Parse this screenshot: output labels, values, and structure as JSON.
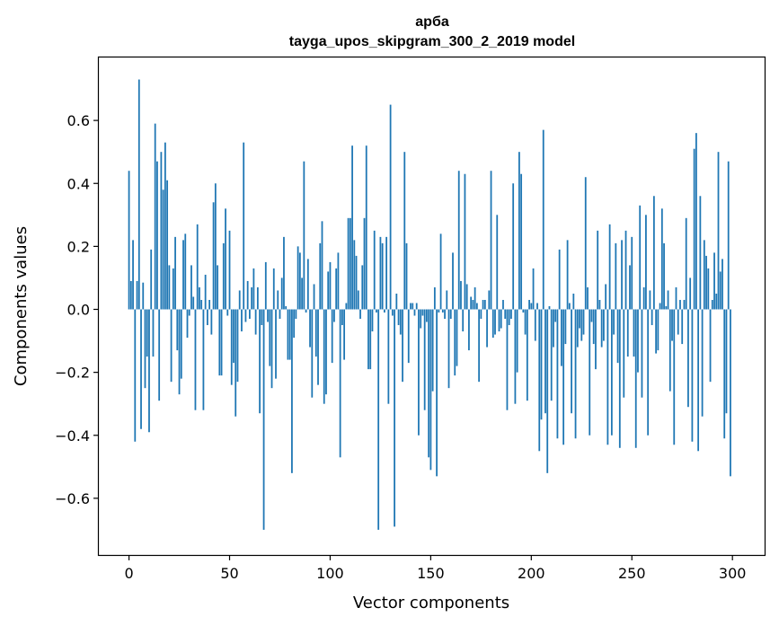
{
  "chart_data": {
    "type": "bar",
    "title": "арба",
    "subtitle": "tayga_upos_skipgram_300_2_2019 model",
    "xlabel": "Vector components",
    "ylabel": "Components values",
    "xlim": [
      -15,
      316
    ],
    "ylim": [
      -0.78,
      0.8
    ],
    "xticks": [
      0,
      50,
      100,
      150,
      200,
      250,
      300
    ],
    "xtick_labels": [
      "0",
      "50",
      "100",
      "150",
      "200",
      "250",
      "300"
    ],
    "yticks": [
      -0.6,
      -0.4,
      -0.2,
      0.0,
      0.2,
      0.4,
      0.6
    ],
    "ytick_labels": [
      "−0.6",
      "−0.4",
      "−0.2",
      "0.0",
      "0.2",
      "0.4",
      "0.6"
    ],
    "grid": false,
    "bar_color": "#1f77b4",
    "x": "0..299",
    "values": [
      0.44,
      0.09,
      0.22,
      -0.42,
      0.09,
      0.73,
      -0.38,
      0.085,
      -0.25,
      -0.15,
      -0.39,
      0.19,
      -0.15,
      0.59,
      0.47,
      -0.29,
      0.5,
      0.38,
      0.53,
      0.41,
      0.14,
      -0.23,
      0.13,
      0.23,
      -0.13,
      -0.27,
      -0.22,
      0.22,
      0.24,
      -0.09,
      -0.02,
      0.14,
      0.04,
      -0.32,
      0.27,
      0.07,
      0.03,
      -0.32,
      0.11,
      -0.05,
      0.03,
      -0.08,
      0.34,
      0.4,
      0.14,
      -0.21,
      -0.21,
      0.21,
      0.32,
      -0.02,
      0.25,
      -0.24,
      -0.17,
      -0.34,
      -0.23,
      0.06,
      -0.07,
      0.53,
      -0.04,
      0.09,
      -0.03,
      0.07,
      0.13,
      -0.08,
      0.07,
      -0.33,
      -0.05,
      -0.7,
      0.15,
      -0.04,
      -0.18,
      -0.25,
      0.13,
      -0.22,
      0.06,
      -0.03,
      0.1,
      0.23,
      0.01,
      -0.16,
      -0.16,
      -0.52,
      -0.09,
      -0.03,
      0.2,
      0.18,
      0.1,
      0.47,
      -0.01,
      0.16,
      -0.12,
      -0.28,
      0.08,
      -0.15,
      -0.24,
      0.21,
      0.28,
      -0.3,
      -0.27,
      0.12,
      0.15,
      -0.17,
      -0.04,
      0.13,
      0.18,
      -0.47,
      -0.05,
      -0.16,
      0.02,
      0.29,
      0.29,
      0.52,
      0.22,
      0.17,
      0.06,
      -0.03,
      0.14,
      0.29,
      0.52,
      -0.19,
      -0.19,
      -0.07,
      0.25,
      -0.01,
      -0.7,
      0.23,
      0.21,
      -0.01,
      0.23,
      -0.3,
      0.65,
      -0.02,
      -0.69,
      0.05,
      -0.05,
      -0.08,
      -0.23,
      0.5,
      0.21,
      -0.17,
      0.02,
      0.02,
      -0.02,
      0.02,
      -0.4,
      -0.06,
      -0.02,
      -0.32,
      -0.04,
      -0.47,
      -0.51,
      -0.26,
      0.07,
      -0.53,
      -0.01,
      0.24,
      -0.01,
      -0.03,
      0.06,
      -0.25,
      -0.03,
      0.18,
      -0.21,
      -0.18,
      0.44,
      0.09,
      -0.07,
      0.43,
      0.08,
      -0.13,
      0.04,
      0.03,
      0.07,
      0.02,
      -0.23,
      -0.03,
      0.03,
      0.03,
      -0.12,
      0.06,
      0.44,
      -0.09,
      -0.08,
      0.3,
      -0.07,
      -0.06,
      0.03,
      -0.03,
      -0.32,
      -0.05,
      -0.03,
      0.4,
      -0.3,
      -0.2,
      0.5,
      0.43,
      -0.01,
      -0.08,
      -0.29,
      0.03,
      0.02,
      0.13,
      -0.1,
      0.02,
      -0.45,
      -0.35,
      0.57,
      -0.33,
      -0.52,
      0.01,
      -0.29,
      -0.12,
      -0.04,
      -0.41,
      0.19,
      -0.18,
      -0.43,
      -0.11,
      0.22,
      0.02,
      -0.33,
      0.05,
      -0.41,
      -0.12,
      -0.06,
      -0.1,
      -0.08,
      0.42,
      0.07,
      -0.4,
      -0.04,
      -0.11,
      -0.19,
      0.25,
      0.03,
      -0.12,
      -0.1,
      0.08,
      -0.43,
      0.27,
      -0.4,
      -0.08,
      0.21,
      -0.17,
      -0.44,
      0.22,
      -0.28,
      0.25,
      -0.15,
      0.14,
      0.23,
      -0.15,
      -0.44,
      -0.2,
      0.33,
      -0.28,
      0.07,
      0.3,
      -0.4,
      0.06,
      -0.05,
      0.36,
      -0.14,
      -0.13,
      0.02,
      0.32,
      0.21,
      0.01,
      0.06,
      -0.26,
      -0.1,
      -0.43,
      0.07,
      -0.08,
      0.03,
      -0.11,
      0.03,
      0.29,
      -0.31,
      0.1,
      -0.42,
      0.51,
      0.56,
      -0.45,
      0.36,
      -0.34,
      0.22,
      0.17,
      0.13,
      -0.23,
      0.03,
      0.18,
      0.05,
      0.5,
      0.12,
      0.16,
      -0.41,
      -0.33,
      0.47,
      -0.53
    ]
  }
}
